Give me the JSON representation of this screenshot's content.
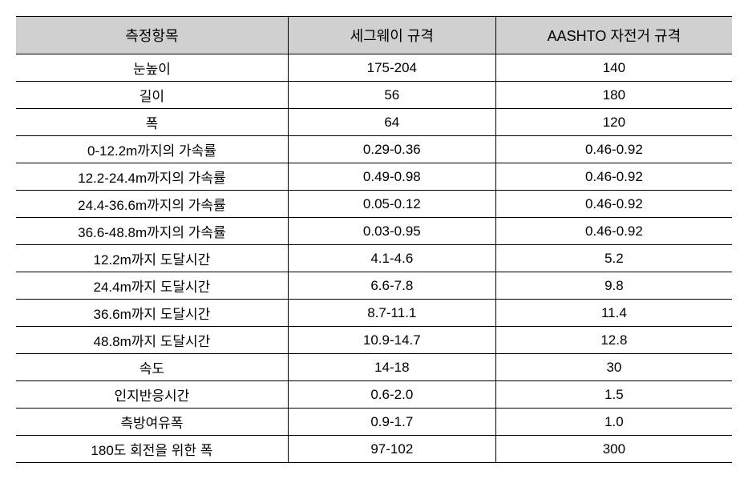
{
  "table": {
    "type": "table",
    "background_color": "#ffffff",
    "header_bg_color": "#d0d0d0",
    "border_color": "#000000",
    "font_family": "Malgun Gothic",
    "header_fontsize": 18,
    "cell_fontsize": 17,
    "columns": [
      {
        "label": "측정항목",
        "width": "38%"
      },
      {
        "label": "세그웨이 규격",
        "width": "29%"
      },
      {
        "label": "AASHTO 자전거 규격",
        "width": "33%"
      }
    ],
    "rows": [
      [
        "눈높이",
        "175-204",
        "140"
      ],
      [
        "길이",
        "56",
        "180"
      ],
      [
        "폭",
        "64",
        "120"
      ],
      [
        "0-12.2m까지의 가속률",
        "0.29-0.36",
        "0.46-0.92"
      ],
      [
        "12.2-24.4m까지의 가속률",
        "0.49-0.98",
        "0.46-0.92"
      ],
      [
        "24.4-36.6m까지의 가속률",
        "0.05-0.12",
        "0.46-0.92"
      ],
      [
        "36.6-48.8m까지의 가속률",
        "0.03-0.95",
        "0.46-0.92"
      ],
      [
        "12.2m까지 도달시간",
        "4.1-4.6",
        "5.2"
      ],
      [
        "24.4m까지 도달시간",
        "6.6-7.8",
        "9.8"
      ],
      [
        "36.6m까지 도달시간",
        "8.7-11.1",
        "11.4"
      ],
      [
        "48.8m까지 도달시간",
        "10.9-14.7",
        "12.8"
      ],
      [
        "속도",
        "14-18",
        "30"
      ],
      [
        "인지반응시간",
        "0.6-2.0",
        "1.5"
      ],
      [
        "측방여유폭",
        "0.9-1.7",
        "1.0"
      ],
      [
        "180도 회전을 위한 폭",
        "97-102",
        "300"
      ]
    ]
  }
}
